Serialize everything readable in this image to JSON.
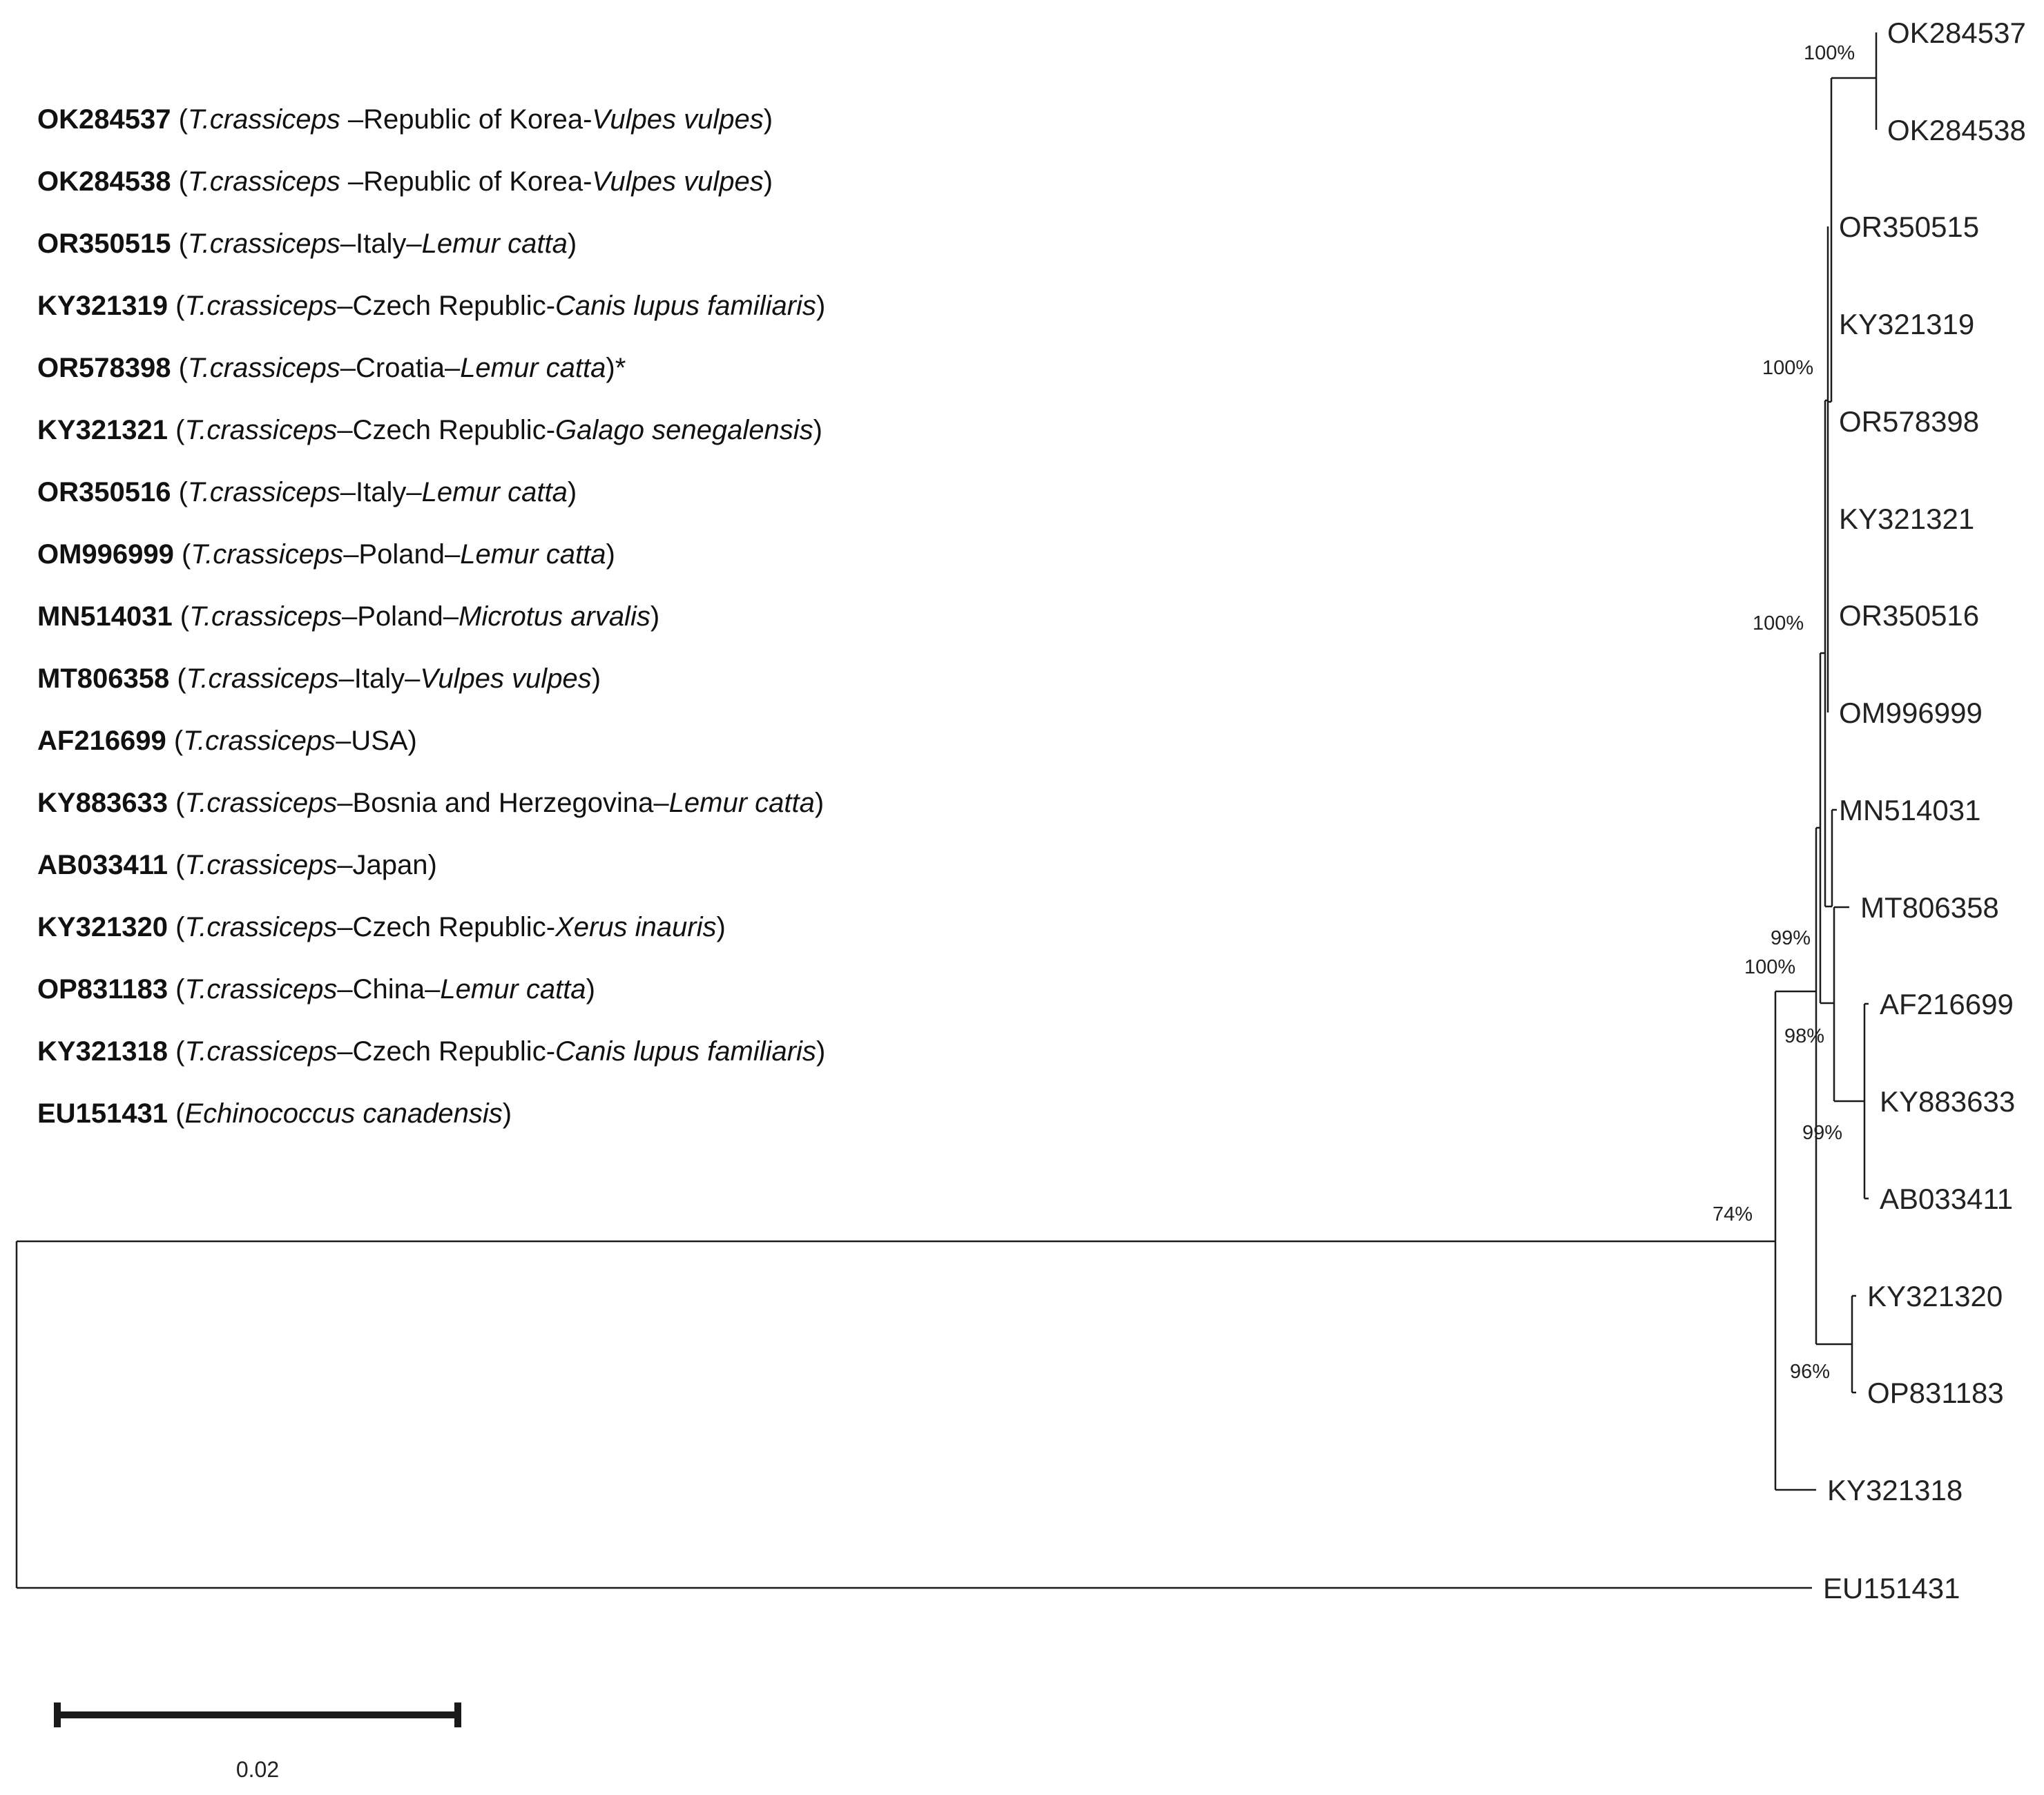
{
  "legend": [
    {
      "accession": "OK284537",
      "parts": [
        [
          "",
          " ("
        ],
        [
          "i",
          "T.crassiceps"
        ],
        [
          "",
          " –Republic of Korea-"
        ],
        [
          "i",
          "Vulpes vulpes"
        ],
        [
          "",
          ")"
        ]
      ]
    },
    {
      "accession": "OK284538",
      "parts": [
        [
          "",
          " ("
        ],
        [
          "i",
          "T.crassiceps"
        ],
        [
          "",
          " –Republic of Korea-"
        ],
        [
          "i",
          "Vulpes vulpes"
        ],
        [
          "",
          ")"
        ]
      ]
    },
    {
      "accession": "OR350515",
      "parts": [
        [
          "",
          " ("
        ],
        [
          "i",
          "T.crassiceps"
        ],
        [
          "",
          "–Italy–"
        ],
        [
          "i",
          "Lemur catta"
        ],
        [
          "",
          ")"
        ]
      ]
    },
    {
      "accession": "KY321319",
      "parts": [
        [
          "",
          " ("
        ],
        [
          "i",
          "T.crassiceps"
        ],
        [
          "",
          "–Czech Republic-"
        ],
        [
          "i",
          "Canis lupus familiaris"
        ],
        [
          "",
          ")"
        ]
      ]
    },
    {
      "accession": "OR578398",
      "parts": [
        [
          "",
          " ("
        ],
        [
          "i",
          "T.crassiceps"
        ],
        [
          "",
          "–Croatia–"
        ],
        [
          "i",
          "Lemur catta"
        ],
        [
          "",
          ")*"
        ]
      ]
    },
    {
      "accession": "KY321321",
      "parts": [
        [
          "",
          " ("
        ],
        [
          "i",
          "T.crassiceps"
        ],
        [
          "",
          "–Czech Republic-"
        ],
        [
          "i",
          "Galago senegalensis"
        ],
        [
          "",
          ")"
        ]
      ]
    },
    {
      "accession": "OR350516",
      "parts": [
        [
          "",
          " ("
        ],
        [
          "i",
          "T.crassiceps"
        ],
        [
          "",
          "–Italy–"
        ],
        [
          "i",
          "Lemur catta"
        ],
        [
          "",
          ")"
        ]
      ]
    },
    {
      "accession": "OM996999",
      "parts": [
        [
          "",
          " ("
        ],
        [
          "i",
          "T.crassiceps"
        ],
        [
          "",
          "–Poland–"
        ],
        [
          "i",
          "Lemur catta"
        ],
        [
          "",
          ")"
        ]
      ]
    },
    {
      "accession": "MN514031",
      "parts": [
        [
          "",
          " ("
        ],
        [
          "i",
          "T.crassiceps"
        ],
        [
          "",
          "–Poland–"
        ],
        [
          "i",
          "Microtus arvalis"
        ],
        [
          "",
          ")"
        ]
      ]
    },
    {
      "accession": "MT806358",
      "parts": [
        [
          "",
          " ("
        ],
        [
          "i",
          "T.crassiceps"
        ],
        [
          "",
          "–Italy–"
        ],
        [
          "i",
          "Vulpes vulpes"
        ],
        [
          "",
          ")"
        ]
      ]
    },
    {
      "accession": "AF216699",
      "parts": [
        [
          "",
          " ("
        ],
        [
          "i",
          "T.crassiceps"
        ],
        [
          "",
          "–USA)"
        ]
      ]
    },
    {
      "accession": "KY883633",
      "parts": [
        [
          "",
          " ("
        ],
        [
          "i",
          "T.crassiceps"
        ],
        [
          "",
          "–Bosnia and Herzegovina–"
        ],
        [
          "i",
          "Lemur catta"
        ],
        [
          "",
          ")"
        ]
      ]
    },
    {
      "accession": "AB033411",
      "parts": [
        [
          "",
          " ("
        ],
        [
          "i",
          "T.crassiceps"
        ],
        [
          "",
          "–Japan)"
        ]
      ]
    },
    {
      "accession": "KY321320",
      "parts": [
        [
          "",
          " ("
        ],
        [
          "i",
          "T.crassiceps"
        ],
        [
          "",
          "–Czech Republic-"
        ],
        [
          "i",
          "Xerus inauris"
        ],
        [
          "",
          ")"
        ]
      ]
    },
    {
      "accession": "OP831183",
      "parts": [
        [
          "",
          " ("
        ],
        [
          "i",
          "T.crassiceps"
        ],
        [
          "",
          "–China–"
        ],
        [
          "i",
          "Lemur catta"
        ],
        [
          "",
          ")"
        ]
      ]
    },
    {
      "accession": "KY321318",
      "parts": [
        [
          "",
          " ("
        ],
        [
          "i",
          "T.crassiceps"
        ],
        [
          "",
          "–Czech Republic-"
        ],
        [
          "i",
          "Canis lupus familiaris"
        ],
        [
          "",
          ")"
        ]
      ]
    },
    {
      "accession": "EU151431",
      "parts": [
        [
          "",
          " ("
        ],
        [
          "i",
          "Echinococcus canadensis"
        ],
        [
          "",
          ")"
        ]
      ]
    }
  ],
  "tree": {
    "leaves": [
      "OK284537",
      "OK284538",
      "OR350515",
      "KY321319",
      "OR578398",
      "KY321321",
      "OR350516",
      "OM996999",
      "MN514031",
      "MT806358",
      "AF216699",
      "KY883633",
      "AB033411",
      "KY321320",
      "OP831183",
      "KY321318",
      "EU151431"
    ],
    "bootstrap": {
      "okCluster": "100%",
      "orCluster": "100%",
      "innerClade": "100%",
      "mtClade": "99%",
      "mainClade": "100%",
      "afClade": "98%",
      "kyClade": "99%",
      "root": "74%",
      "xerusClade": "96%"
    }
  },
  "scale": {
    "label": "0.02"
  }
}
